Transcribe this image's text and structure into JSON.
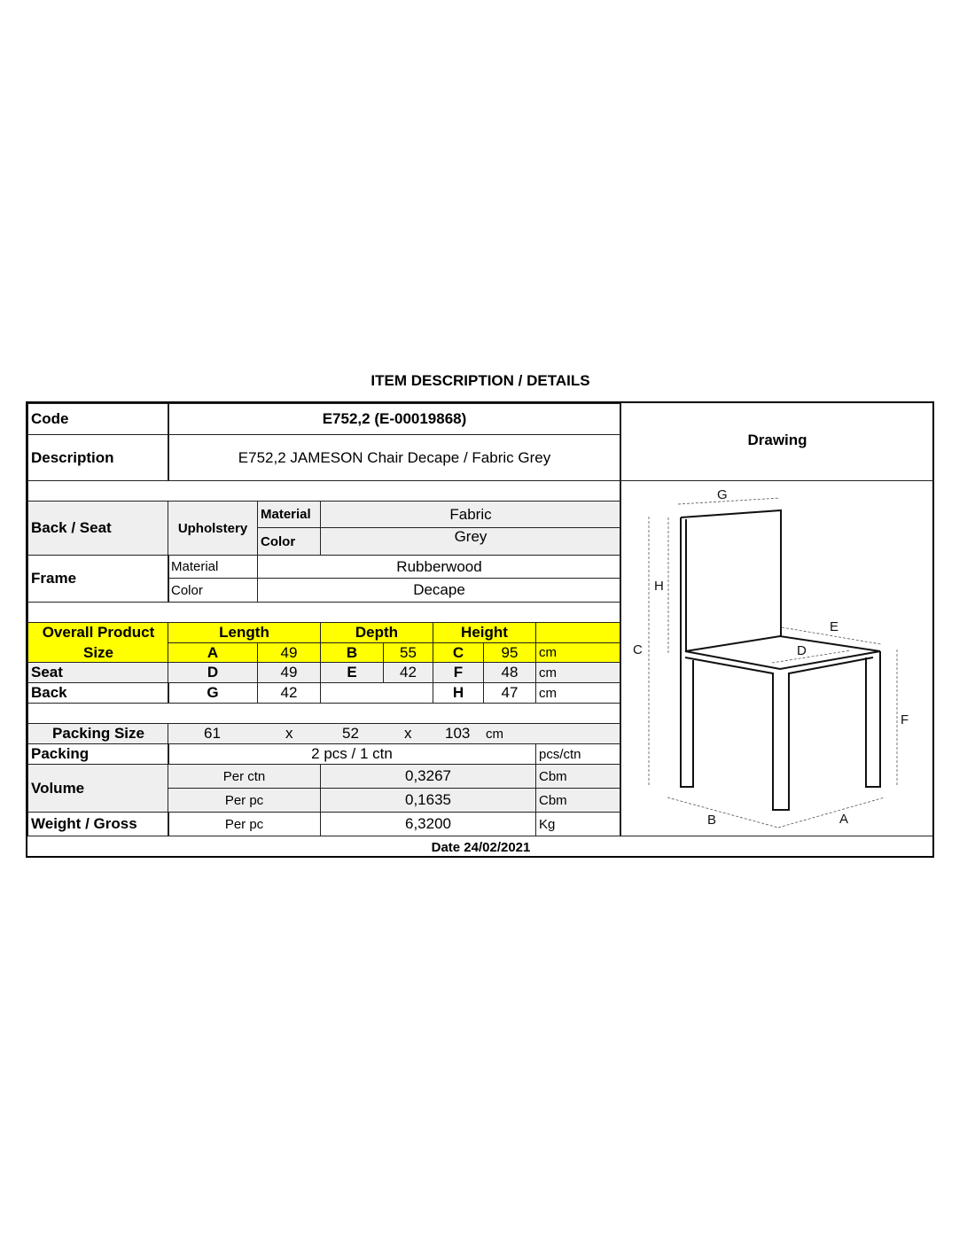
{
  "title": "ITEM DESCRIPTION / DETAILS",
  "code": {
    "label": "Code",
    "value": "E752,2 (E-00019868)"
  },
  "description": {
    "label": "Description",
    "value": "E752,2 JAMESON Chair Decape / Fabric Grey"
  },
  "drawing": {
    "label": "Drawing",
    "dims": [
      "G",
      "H",
      "C",
      "E",
      "D",
      "F",
      "B",
      "A"
    ]
  },
  "back_seat": {
    "label": "Back / Seat",
    "group": "Upholstery",
    "material_label": "Material",
    "material": "Fabric",
    "color_label": "Color",
    "color": "Grey"
  },
  "frame": {
    "label": "Frame",
    "material_label": "Material",
    "material": "Rubberwood",
    "color_label": "Color",
    "color": "Decape"
  },
  "size": {
    "label1": "Overall Product",
    "label2": "Size",
    "length": "Length",
    "depth": "Depth",
    "height": "Height",
    "overall": [
      "A",
      "49",
      "B",
      "55",
      "C",
      "95",
      "cm"
    ],
    "seat_label": "Seat",
    "seat": [
      "D",
      "49",
      "E",
      "42",
      "F",
      "48",
      "cm"
    ],
    "back_label": "Back",
    "back": [
      "G",
      "42",
      "H",
      "47",
      "cm"
    ],
    "highlight": "#ffff00"
  },
  "packing_size": {
    "label": "Packing Size",
    "l": "61",
    "x1": "x",
    "w": "52",
    "x2": "x",
    "h": "103",
    "unit": "cm"
  },
  "packing": {
    "label": "Packing",
    "value": "2 pcs / 1 ctn",
    "unit": "pcs/ctn"
  },
  "volume": {
    "label": "Volume",
    "per_ctn_label": "Per ctn",
    "per_ctn": "0,3267",
    "per_ctn_unit": "Cbm",
    "per_pc_label": "Per pc",
    "per_pc": "0,1635",
    "per_pc_unit": "Cbm"
  },
  "weight": {
    "label": "Weight / Gross",
    "per_label": "Per pc",
    "value": "6,3200",
    "unit": "Kg"
  },
  "date": "Date 24/02/2021"
}
